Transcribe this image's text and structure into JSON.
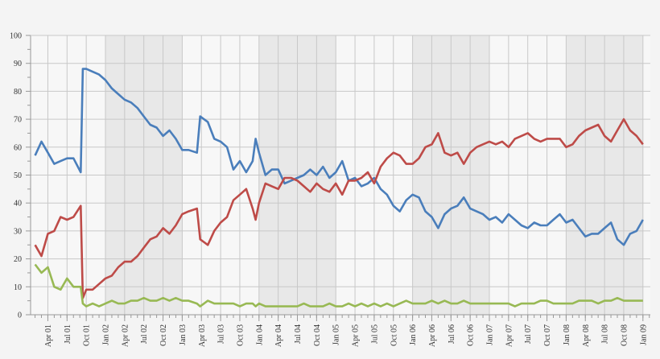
{
  "chart_data": {
    "type": "line",
    "title": "",
    "xlabel": "",
    "ylabel": "",
    "ylim": [
      0,
      100
    ],
    "yticks": [
      "0",
      "10",
      "20",
      "30",
      "40",
      "50",
      "60",
      "70",
      "80",
      "90",
      "100"
    ],
    "xticks": [
      "Apr 01",
      "Jul 01",
      "Oct 01",
      "Jan 02",
      "Apr 02",
      "Jul 02",
      "Oct 02",
      "Jan 03",
      "Apr 03",
      "Jul 03",
      "Oct 03",
      "Jan 04",
      "Apr 04",
      "Jul 04",
      "Oct 04",
      "Jan 05",
      "Apr 05",
      "Jul 05",
      "Oct 05",
      "Jan 06",
      "Apr 06",
      "Jul 06",
      "Oct 06",
      "Jan 07",
      "Apr 07",
      "Jul 07",
      "Oct 07",
      "Jan 08",
      "Apr 08",
      "Jul 08",
      "Oct 08",
      "Jan 09"
    ],
    "shaded_years": [
      "2002",
      "2004",
      "2006",
      "2008"
    ],
    "grid": true,
    "legend": "none",
    "x": [
      "2001-02-01",
      "2001-03-01",
      "2001-04-01",
      "2001-05-01",
      "2001-06-01",
      "2001-07-01",
      "2001-08-01",
      "2001-09-05",
      "2001-09-15",
      "2001-10-01",
      "2001-11-01",
      "2001-12-01",
      "2002-01-01",
      "2002-02-01",
      "2002-03-01",
      "2002-04-01",
      "2002-05-01",
      "2002-06-01",
      "2002-07-01",
      "2002-08-01",
      "2002-09-01",
      "2002-10-01",
      "2002-11-01",
      "2002-12-01",
      "2003-01-01",
      "2003-02-01",
      "2003-03-10",
      "2003-03-25",
      "2003-05-01",
      "2003-06-01",
      "2003-07-01",
      "2003-08-01",
      "2003-09-01",
      "2003-10-01",
      "2003-11-01",
      "2003-12-01",
      "2003-12-15",
      "2004-01-01",
      "2004-02-01",
      "2004-03-01",
      "2004-04-01",
      "2004-05-01",
      "2004-06-01",
      "2004-07-01",
      "2004-08-01",
      "2004-09-01",
      "2004-10-01",
      "2004-11-01",
      "2004-12-01",
      "2005-01-01",
      "2005-02-01",
      "2005-03-01",
      "2005-04-01",
      "2005-05-01",
      "2005-06-01",
      "2005-07-01",
      "2005-08-01",
      "2005-09-01",
      "2005-10-01",
      "2005-11-01",
      "2005-12-01",
      "2006-01-01",
      "2006-02-01",
      "2006-03-01",
      "2006-04-01",
      "2006-05-01",
      "2006-06-01",
      "2006-07-01",
      "2006-08-01",
      "2006-09-01",
      "2006-10-01",
      "2006-11-01",
      "2006-12-01",
      "2007-01-01",
      "2007-02-01",
      "2007-03-01",
      "2007-04-01",
      "2007-05-01",
      "2007-06-01",
      "2007-07-01",
      "2007-08-01",
      "2007-09-01",
      "2007-10-01",
      "2007-11-01",
      "2007-12-01",
      "2008-01-01",
      "2008-02-01",
      "2008-03-01",
      "2008-04-01",
      "2008-05-01",
      "2008-06-01",
      "2008-07-01",
      "2008-08-01",
      "2008-09-01",
      "2008-10-01",
      "2008-11-01",
      "2008-12-01",
      "2009-01-01"
    ],
    "series": [
      {
        "color": "#4a7ebb",
        "values": [
          57,
          62,
          58,
          54,
          55,
          56,
          56,
          51,
          88,
          88,
          87,
          86,
          84,
          81,
          79,
          77,
          76,
          74,
          71,
          68,
          67,
          64,
          66,
          63,
          59,
          59,
          58,
          71,
          69,
          63,
          62,
          60,
          52,
          55,
          51,
          55,
          63,
          58,
          50,
          52,
          52,
          47,
          48,
          49,
          50,
          52,
          50,
          53,
          49,
          51,
          55,
          48,
          49,
          46,
          47,
          49,
          45,
          43,
          39,
          37,
          41,
          43,
          42,
          37,
          35,
          31,
          36,
          38,
          39,
          42,
          38,
          37,
          36,
          34,
          35,
          33,
          36,
          34,
          32,
          31,
          33,
          32,
          32,
          34,
          36,
          33,
          34,
          31,
          28,
          29,
          29,
          31,
          33,
          27,
          25,
          29,
          30,
          34
        ]
      },
      {
        "color": "#be4b48",
        "values": [
          25,
          21,
          29,
          30,
          35,
          34,
          35,
          39,
          6,
          9,
          9,
          11,
          13,
          14,
          17,
          19,
          19,
          21,
          24,
          27,
          28,
          31,
          29,
          32,
          36,
          37,
          38,
          27,
          25,
          30,
          33,
          35,
          41,
          43,
          45,
          38,
          34,
          40,
          47,
          46,
          45,
          49,
          49,
          48,
          46,
          44,
          47,
          45,
          44,
          47,
          43,
          48,
          48,
          49,
          51,
          47,
          53,
          56,
          58,
          57,
          54,
          54,
          56,
          60,
          61,
          65,
          58,
          57,
          58,
          54,
          58,
          60,
          61,
          62,
          61,
          62,
          60,
          63,
          64,
          65,
          63,
          62,
          63,
          63,
          63,
          60,
          61,
          64,
          66,
          67,
          68,
          64,
          62,
          66,
          70,
          66,
          64,
          61
        ]
      },
      {
        "color": "#98b954",
        "values": [
          18,
          15,
          17,
          10,
          9,
          13,
          10,
          10,
          4,
          3,
          4,
          3,
          4,
          5,
          4,
          4,
          5,
          5,
          6,
          5,
          5,
          6,
          5,
          6,
          5,
          5,
          4,
          3,
          5,
          4,
          4,
          4,
          4,
          3,
          4,
          4,
          3,
          4,
          3,
          3,
          3,
          3,
          3,
          3,
          4,
          3,
          3,
          3,
          4,
          3,
          3,
          4,
          3,
          4,
          3,
          4,
          3,
          4,
          3,
          4,
          5,
          4,
          4,
          4,
          5,
          4,
          5,
          4,
          4,
          5,
          4,
          4,
          4,
          4,
          4,
          4,
          4,
          3,
          4,
          4,
          4,
          5,
          5,
          4,
          4,
          4,
          4,
          5,
          5,
          5,
          4,
          5,
          5,
          6,
          5,
          5,
          5,
          5
        ]
      }
    ]
  }
}
